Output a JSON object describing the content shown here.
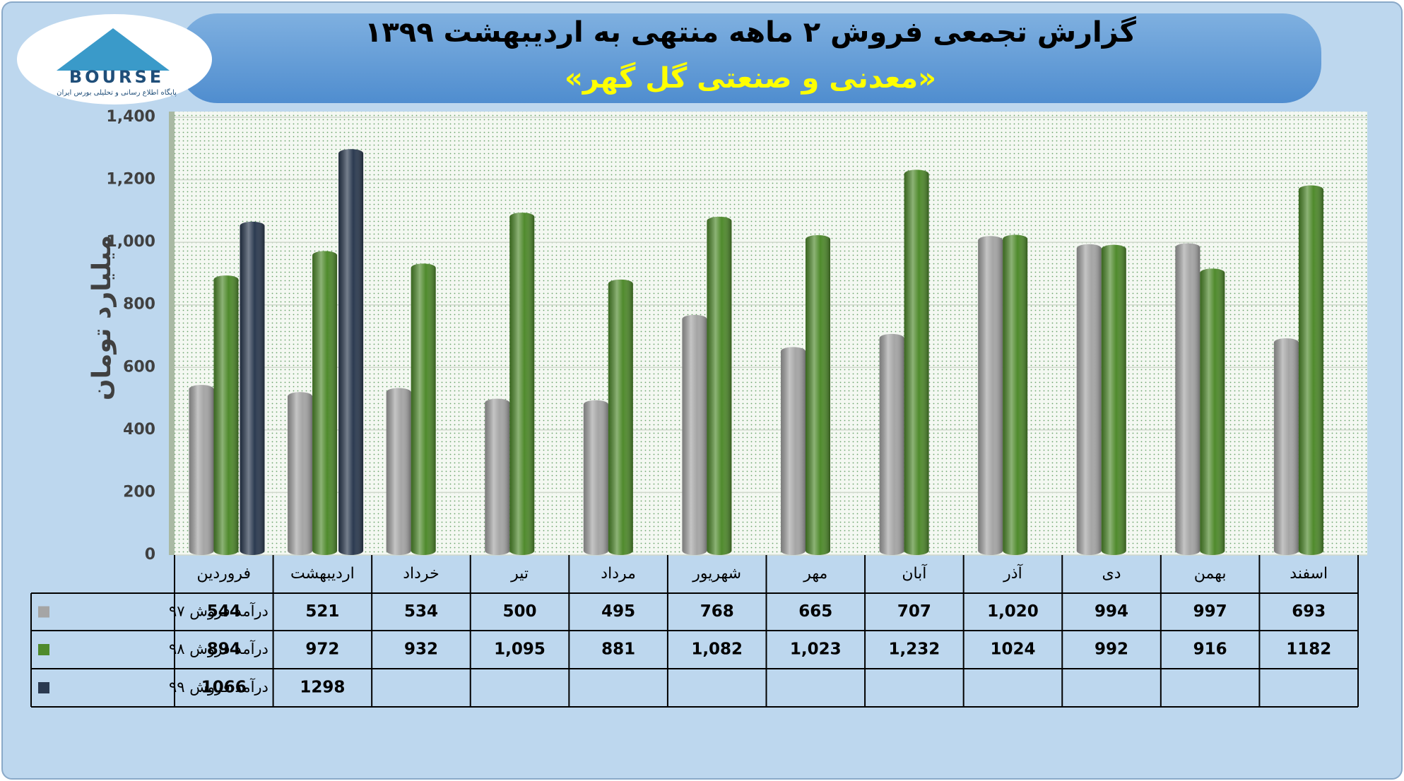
{
  "logo": {
    "name": "BOURSE",
    "tagline": "پایگاه اطلاع رسانی و تحلیلی بورس ایران"
  },
  "chart_data": {
    "type": "bar",
    "title": "گزارش تجمعی فروش ۲ ماهه منتهی به اردیبهشت ۱۳۹۹",
    "subtitle": "«معدنی و صنعتی گل گهر»",
    "y_label": "میلیارد تومان",
    "categories": [
      "فروردین",
      "اردیبهشت",
      "خرداد",
      "تیر",
      "مرداد",
      "شهریور",
      "مهر",
      "آبان",
      "آذر",
      "دی",
      "بهمن",
      "اسفند"
    ],
    "series": [
      {
        "name": "درآمد فروش ۹۷",
        "color": "#a5a5a5",
        "values": [
          544,
          521,
          534,
          500,
          495,
          768,
          665,
          707,
          1020,
          994,
          997,
          693
        ],
        "value_labels": [
          "544",
          "521",
          "534",
          "500",
          "495",
          "768",
          "665",
          "707",
          "1,020",
          "994",
          "997",
          "693"
        ]
      },
      {
        "name": "درآمد فروش ۹۸",
        "color": "#4f8a2c",
        "values": [
          894,
          972,
          932,
          1095,
          881,
          1082,
          1023,
          1232,
          1024,
          992,
          916,
          1182
        ],
        "value_labels": [
          "894",
          "972",
          "932",
          "1,095",
          "881",
          "1,082",
          "1,023",
          "1,232",
          "1024",
          "992",
          "916",
          "1182"
        ]
      },
      {
        "name": "درآمد فروش ۹۹",
        "color": "#2b3a50",
        "values": [
          1066,
          1298,
          null,
          null,
          null,
          null,
          null,
          null,
          null,
          null,
          null,
          null
        ],
        "value_labels": [
          "1066",
          "1298",
          null,
          null,
          null,
          null,
          null,
          null,
          null,
          null,
          null,
          null
        ]
      }
    ],
    "ylim": [
      0,
      1400
    ],
    "yticks": [
      0,
      200,
      400,
      600,
      800,
      {
        "value": 1000,
        "label": "1,000"
      },
      {
        "value": 1200,
        "label": "1,200"
      },
      {
        "value": 1400,
        "label": "1,400"
      }
    ],
    "grid": true
  }
}
